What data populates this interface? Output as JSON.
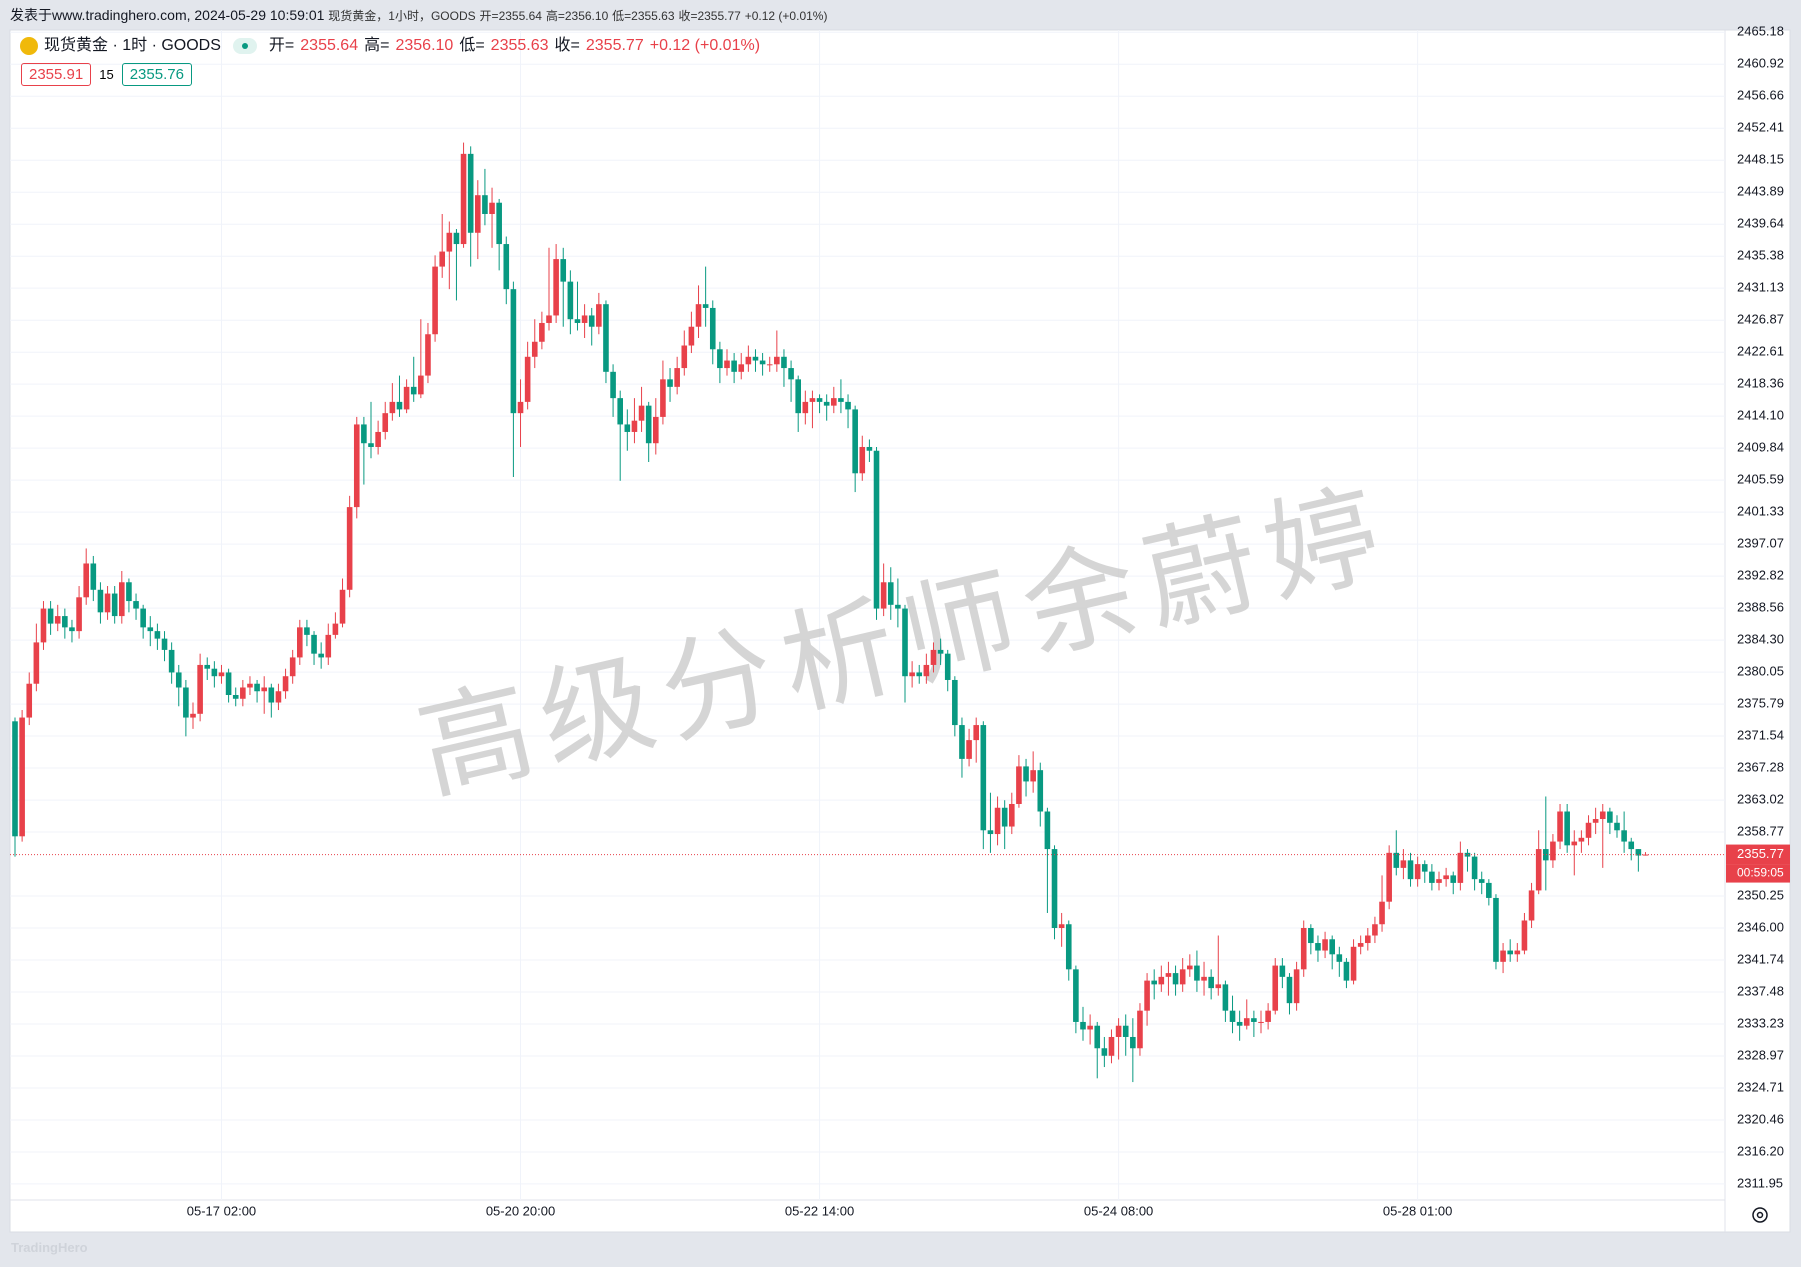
{
  "header": {
    "published": "发表于www.tradinghero.com, 2024-05-29 10:59:01",
    "symbol": "现货黄金，1小时，GOODS"
  },
  "legend": {
    "title": "现货黄金 · 1时 · GOODS",
    "items": [
      {
        "label": "开=",
        "value": "2355.64"
      },
      {
        "label": "高=",
        "value": "2356.10"
      },
      {
        "label": "低=",
        "value": "2355.63"
      },
      {
        "label": "收=",
        "value": "2355.77"
      }
    ],
    "change": "+0.12 (+0.01%)"
  },
  "quotes": {
    "bid": "2355.91",
    "spread": "15",
    "ask": "2355.76"
  },
  "watermark": "高级分析师余蔚婷",
  "footer": "TradingHero",
  "chart_data": {
    "type": "candlestick",
    "up_color": "#e8414a",
    "down_color": "#089981",
    "grid": true,
    "last_price": 2355.77,
    "countdown": "00:59:05",
    "ylim": [
      2309.81,
      2465.48
    ],
    "yticks": [
      2311.95,
      {
        "value": 2316.2,
        "label": "2316.20"
      },
      2320.46,
      2324.71,
      2328.97,
      2333.23,
      2337.48,
      2341.74,
      {
        "value": 2346,
        "label": "2346.00"
      },
      2350.25,
      2358.77,
      2363.02,
      2367.28,
      2371.54,
      2375.79,
      2380.05,
      {
        "value": 2384.3,
        "label": "2384.30"
      },
      2388.56,
      2392.82,
      2397.07,
      2401.33,
      2405.59,
      2409.84,
      {
        "value": 2414.1,
        "label": "2414.10"
      },
      2418.36,
      2422.61,
      2426.87,
      2431.13,
      2435.38,
      2439.64,
      2443.89,
      2448.15,
      2452.41,
      2456.66,
      2460.92,
      2465.18
    ],
    "categories": [
      null,
      null,
      null,
      null,
      null,
      null,
      null,
      null,
      null,
      null,
      null,
      null,
      null,
      null,
      null,
      null,
      null,
      null,
      null,
      null,
      null,
      null,
      null,
      null,
      null,
      null,
      null,
      null,
      null,
      "05-17 02:00",
      null,
      null,
      null,
      null,
      null,
      null,
      null,
      null,
      null,
      null,
      null,
      null,
      null,
      null,
      null,
      null,
      null,
      null,
      null,
      null,
      null,
      null,
      null,
      null,
      null,
      null,
      null,
      null,
      null,
      null,
      null,
      null,
      null,
      null,
      null,
      null,
      null,
      null,
      null,
      null,
      null,
      "05-20 20:00",
      null,
      null,
      null,
      null,
      null,
      null,
      null,
      null,
      null,
      null,
      null,
      null,
      null,
      null,
      null,
      null,
      null,
      null,
      null,
      null,
      null,
      null,
      null,
      null,
      null,
      null,
      null,
      null,
      null,
      null,
      null,
      null,
      null,
      null,
      null,
      null,
      null,
      null,
      null,
      null,
      null,
      "05-22 14:00",
      null,
      null,
      null,
      null,
      null,
      null,
      null,
      null,
      null,
      null,
      null,
      null,
      null,
      null,
      null,
      null,
      null,
      null,
      null,
      null,
      null,
      null,
      null,
      null,
      null,
      null,
      null,
      null,
      null,
      null,
      null,
      null,
      null,
      null,
      null,
      null,
      null,
      null,
      null,
      null,
      null,
      "05-24 08:00",
      null,
      null,
      null,
      null,
      null,
      null,
      null,
      null,
      null,
      null,
      null,
      null,
      null,
      null,
      null,
      null,
      null,
      null,
      null,
      null,
      null,
      null,
      null,
      null,
      null,
      null,
      null,
      null,
      null,
      null,
      null,
      null,
      null,
      null,
      null,
      null,
      null,
      null,
      null,
      null,
      null,
      "05-28 01:00",
      null,
      null,
      null,
      null,
      null,
      null,
      null,
      null,
      null,
      null,
      null,
      null,
      null,
      null,
      null,
      null,
      null,
      null,
      null,
      null,
      null,
      null,
      null,
      null,
      null,
      null,
      null,
      null,
      null,
      null,
      null,
      null
    ],
    "open": [
      2373.5,
      2358.2,
      2374.0,
      2378.5,
      2384.0,
      2388.5,
      2386.5,
      2387.5,
      2386.0,
      2385.5,
      2390.0,
      2394.5,
      2391.0,
      2388.0,
      2390.5,
      2387.5,
      2392.0,
      2389.5,
      2388.5,
      2386.0,
      2385.5,
      2384.5,
      2383.0,
      2380.0,
      2378.0,
      2374.0,
      2374.5,
      2381.0,
      2380.5,
      2379.5,
      2380.0,
      2377.0,
      2376.5,
      2378.0,
      2378.5,
      2377.5,
      2378.0,
      2376.0,
      2377.5,
      2379.5,
      2382.0,
      2386.0,
      2385.0,
      2382.5,
      2382.0,
      2385.0,
      2386.5,
      2391.0,
      2402.0,
      2413.0,
      2410.5,
      2410.0,
      2412.0,
      2414.5,
      2416.0,
      2415.0,
      2418.0,
      2417.0,
      2419.5,
      2425.0,
      2434.0,
      2436.0,
      2438.5,
      2437.0,
      2449.0,
      2438.5,
      2443.5,
      2441.0,
      2442.5,
      2437.0,
      2431.0,
      2414.5,
      2416.0,
      2422.0,
      2424.0,
      2426.5,
      2427.5,
      2435.0,
      2432.0,
      2427.0,
      2426.5,
      2427.5,
      2426.0,
      2429.0,
      2420.0,
      2416.5,
      2413.0,
      2412.0,
      2413.5,
      2415.5,
      2410.5,
      2414.0,
      2419.0,
      2418.0,
      2420.5,
      2423.5,
      2426.0,
      2429.0,
      2428.5,
      2423.0,
      2420.5,
      2421.5,
      2420.0,
      2421.0,
      2422.0,
      2421.5,
      2421.0,
      2421.0,
      2422.0,
      2420.5,
      2419.0,
      2414.5,
      2416.0,
      2416.5,
      2416.0,
      2415.5,
      2416.5,
      2416.0,
      2415.0,
      2406.5,
      2410.0,
      2409.5,
      2388.5,
      2392.0,
      2389.0,
      2388.5,
      2379.5,
      2380.0,
      2379.5,
      2381.0,
      2383.0,
      2382.5,
      2379.0,
      2373.0,
      2368.5,
      2371.0,
      2373.0,
      2359.0,
      2358.5,
      2362.0,
      2359.5,
      2362.5,
      2367.5,
      2365.5,
      2367.0,
      2361.5,
      2356.5,
      2346.0,
      2346.5,
      2340.5,
      2333.5,
      2332.5,
      2333.0,
      2330.0,
      2329.0,
      2331.5,
      2333.0,
      2331.5,
      2330.0,
      2335.0,
      2339.0,
      2338.5,
      2339.5,
      2340.0,
      2338.5,
      2340.5,
      2341.0,
      2339.0,
      2339.5,
      2338.0,
      2338.5,
      2335.0,
      2333.5,
      2333.0,
      2334.0,
      2333.5,
      2333.5,
      2335.0,
      2341.0,
      2339.5,
      2336.0,
      2340.5,
      2346.0,
      2344.0,
      2343.0,
      2344.5,
      2342.5,
      2341.5,
      2339.0,
      2343.5,
      2344.0,
      2345.0,
      2346.5,
      2349.5,
      2356.0,
      2354.0,
      2355.0,
      2352.5,
      2354.5,
      2353.5,
      2352.0,
      2352.5,
      2353.0,
      2352.0,
      2356.0,
      2355.5,
      2352.5,
      2352.0,
      2350.0,
      2341.5,
      2343.0,
      2342.5,
      2343.0,
      2347.0,
      2351.0,
      2356.5,
      2355.0,
      2357.5,
      2361.5,
      2357.0,
      2357.5,
      2358.0,
      2360.0,
      2360.5,
      2361.5,
      2360.0,
      2359.0,
      2357.5,
      2356.5,
      2355.64
    ],
    "high": [
      2374.0,
      2375.0,
      2380.0,
      2386.5,
      2389.5,
      2389.5,
      2389.0,
      2388.5,
      2387.0,
      2391.5,
      2396.5,
      2395.5,
      2392.0,
      2391.5,
      2391.5,
      2393.5,
      2392.5,
      2390.5,
      2389.0,
      2387.5,
      2386.5,
      2385.5,
      2384.0,
      2381.0,
      2379.0,
      2376.0,
      2382.5,
      2382.0,
      2381.5,
      2381.0,
      2380.5,
      2378.0,
      2379.0,
      2379.5,
      2379.0,
      2379.5,
      2378.5,
      2378.5,
      2380.5,
      2383.0,
      2387.0,
      2387.0,
      2385.5,
      2384.0,
      2386.5,
      2388.0,
      2392.5,
      2403.5,
      2414.0,
      2414.0,
      2416.0,
      2413.5,
      2416.0,
      2418.5,
      2419.5,
      2419.0,
      2422.0,
      2427.0,
      2426.5,
      2435.5,
      2441.0,
      2440.0,
      2439.0,
      2450.5,
      2450.0,
      2445.5,
      2447.0,
      2444.5,
      2443.0,
      2438.0,
      2432.0,
      2419.0,
      2424.0,
      2427.0,
      2428.0,
      2436.5,
      2437.0,
      2436.5,
      2433.5,
      2432.0,
      2429.0,
      2428.5,
      2430.5,
      2429.5,
      2421.0,
      2417.5,
      2415.0,
      2416.5,
      2418.0,
      2416.0,
      2416.5,
      2421.5,
      2420.5,
      2422.0,
      2425.5,
      2428.0,
      2431.5,
      2434.0,
      2429.5,
      2424.0,
      2423.0,
      2422.5,
      2422.5,
      2423.5,
      2423.0,
      2422.5,
      2422.0,
      2425.5,
      2423.0,
      2421.5,
      2419.5,
      2417.5,
      2417.5,
      2417.0,
      2417.0,
      2418.0,
      2419.0,
      2417.0,
      2415.5,
      2411.5,
      2411.0,
      2410.0,
      2394.5,
      2394.0,
      2392.5,
      2389.0,
      2381.5,
      2381.0,
      2382.5,
      2384.0,
      2384.5,
      2383.0,
      2379.5,
      2374.0,
      2372.5,
      2374.0,
      2373.5,
      2364.0,
      2363.5,
      2363.0,
      2364.0,
      2369.0,
      2368.5,
      2369.5,
      2368.0,
      2362.0,
      2357.0,
      2348.0,
      2347.0,
      2341.0,
      2335.5,
      2334.5,
      2333.5,
      2331.5,
      2332.5,
      2334.0,
      2334.5,
      2334.0,
      2336.0,
      2340.0,
      2340.5,
      2341.0,
      2341.5,
      2341.0,
      2342.0,
      2342.5,
      2343.0,
      2341.5,
      2340.5,
      2345.0,
      2339.0,
      2337.0,
      2335.0,
      2336.5,
      2335.0,
      2335.0,
      2336.0,
      2342.0,
      2342.0,
      2340.0,
      2341.5,
      2347.0,
      2346.5,
      2345.0,
      2345.5,
      2345.0,
      2343.5,
      2342.0,
      2344.5,
      2345.0,
      2346.0,
      2347.5,
      2353.0,
      2357.0,
      2359.0,
      2356.5,
      2356.0,
      2355.5,
      2355.0,
      2354.5,
      2353.5,
      2354.0,
      2353.5,
      2357.5,
      2356.5,
      2356.0,
      2353.5,
      2352.5,
      2350.5,
      2344.0,
      2344.5,
      2344.0,
      2348.0,
      2352.0,
      2359.0,
      2363.5,
      2358.5,
      2362.5,
      2362.5,
      2359.0,
      2359.0,
      2361.0,
      2362.0,
      2362.5,
      2362.0,
      2361.0,
      2361.5,
      2358.0,
      2356.5,
      2356.1
    ],
    "low": [
      2355.5,
      2357.5,
      2373.0,
      2377.5,
      2383.0,
      2385.0,
      2385.5,
      2384.5,
      2384.0,
      2384.5,
      2389.0,
      2389.5,
      2386.5,
      2387.0,
      2386.5,
      2386.5,
      2388.0,
      2387.0,
      2384.5,
      2383.5,
      2383.0,
      2381.5,
      2378.5,
      2375.5,
      2371.5,
      2372.5,
      2373.5,
      2379.0,
      2378.0,
      2378.5,
      2376.0,
      2375.5,
      2375.5,
      2377.0,
      2376.0,
      2374.5,
      2374.0,
      2375.0,
      2376.5,
      2378.5,
      2381.0,
      2383.5,
      2381.0,
      2380.5,
      2381.0,
      2384.5,
      2386.0,
      2390.0,
      2400.5,
      2405.0,
      2408.5,
      2409.0,
      2411.0,
      2413.5,
      2414.0,
      2414.5,
      2416.0,
      2416.5,
      2418.5,
      2424.0,
      2432.5,
      2431.0,
      2429.5,
      2436.5,
      2434.0,
      2435.0,
      2439.5,
      2436.5,
      2433.5,
      2429.0,
      2406.0,
      2410.0,
      2415.0,
      2420.5,
      2423.0,
      2425.5,
      2426.5,
      2426.0,
      2425.0,
      2425.5,
      2424.5,
      2423.5,
      2425.0,
      2418.5,
      2414.0,
      2405.5,
      2409.5,
      2410.5,
      2412.0,
      2408.0,
      2409.0,
      2413.0,
      2416.0,
      2417.0,
      2419.5,
      2422.5,
      2424.5,
      2426.0,
      2421.0,
      2418.5,
      2419.5,
      2418.5,
      2419.0,
      2420.0,
      2420.0,
      2419.5,
      2420.0,
      2420.0,
      2418.0,
      2416.0,
      2412.0,
      2413.0,
      2412.5,
      2414.5,
      2413.5,
      2414.5,
      2414.5,
      2412.5,
      2404.0,
      2405.5,
      2408.0,
      2387.0,
      2387.5,
      2387.0,
      2386.0,
      2376.0,
      2378.0,
      2378.5,
      2378.5,
      2380.0,
      2381.0,
      2377.5,
      2371.5,
      2366.0,
      2367.5,
      2368.0,
      2356.5,
      2356.0,
      2357.0,
      2356.5,
      2358.5,
      2362.0,
      2363.5,
      2364.0,
      2359.5,
      2348.0,
      2344.5,
      2343.5,
      2339.0,
      2332.0,
      2331.0,
      2330.5,
      2326.0,
      2327.5,
      2328.0,
      2328.5,
      2329.0,
      2325.5,
      2329.0,
      2333.0,
      2336.5,
      2337.5,
      2337.0,
      2337.0,
      2337.5,
      2339.5,
      2337.5,
      2337.0,
      2336.5,
      2337.0,
      2333.5,
      2332.0,
      2331.0,
      2332.5,
      2331.5,
      2332.0,
      2332.5,
      2334.5,
      2338.0,
      2334.5,
      2335.0,
      2339.5,
      2342.5,
      2341.5,
      2342.0,
      2340.5,
      2339.5,
      2338.0,
      2338.5,
      2342.5,
      2343.0,
      2344.0,
      2345.5,
      2348.5,
      2353.0,
      2352.5,
      2351.5,
      2351.5,
      2352.0,
      2351.0,
      2351.0,
      2351.5,
      2350.5,
      2351.0,
      2353.5,
      2351.0,
      2350.5,
      2349.0,
      2340.5,
      2340.0,
      2341.5,
      2341.5,
      2342.5,
      2346.0,
      2350.5,
      2351.0,
      2354.0,
      2356.5,
      2356.0,
      2353.0,
      2356.0,
      2357.0,
      2358.5,
      2354.0,
      2358.5,
      2358.0,
      2356.0,
      2355.0,
      2353.5,
      2355.63
    ],
    "close": [
      2358.2,
      2374.0,
      2378.5,
      2384.0,
      2388.5,
      2386.5,
      2387.5,
      2386.0,
      2385.5,
      2390.0,
      2394.5,
      2391.0,
      2388.0,
      2390.5,
      2387.5,
      2392.0,
      2389.5,
      2388.5,
      2386.0,
      2385.5,
      2384.5,
      2383.0,
      2380.0,
      2378.0,
      2374.0,
      2374.5,
      2381.0,
      2380.5,
      2379.5,
      2380.0,
      2377.0,
      2376.5,
      2378.0,
      2378.5,
      2377.5,
      2378.0,
      2376.0,
      2377.5,
      2379.5,
      2382.0,
      2386.0,
      2385.0,
      2382.5,
      2382.0,
      2385.0,
      2386.5,
      2391.0,
      2402.0,
      2413.0,
      2410.5,
      2410.0,
      2412.0,
      2414.5,
      2416.0,
      2415.0,
      2418.0,
      2417.0,
      2419.5,
      2425.0,
      2434.0,
      2436.0,
      2438.5,
      2437.0,
      2449.0,
      2438.5,
      2443.5,
      2441.0,
      2442.5,
      2437.0,
      2431.0,
      2414.5,
      2416.0,
      2422.0,
      2424.0,
      2426.5,
      2427.5,
      2435.0,
      2432.0,
      2427.0,
      2426.5,
      2427.5,
      2426.0,
      2429.0,
      2420.0,
      2416.5,
      2413.0,
      2412.0,
      2413.5,
      2415.5,
      2410.5,
      2414.0,
      2419.0,
      2418.0,
      2420.5,
      2423.5,
      2426.0,
      2429.0,
      2428.5,
      2423.0,
      2420.5,
      2421.5,
      2420.0,
      2421.0,
      2422.0,
      2421.5,
      2421.0,
      2421.0,
      2422.0,
      2420.5,
      2419.0,
      2414.5,
      2416.0,
      2416.5,
      2416.0,
      2415.5,
      2416.5,
      2416.0,
      2415.0,
      2406.5,
      2410.0,
      2409.5,
      2388.5,
      2392.0,
      2389.0,
      2388.5,
      2379.5,
      2380.0,
      2379.5,
      2381.0,
      2383.0,
      2382.5,
      2379.0,
      2373.0,
      2368.5,
      2371.0,
      2373.0,
      2359.0,
      2358.5,
      2362.0,
      2359.5,
      2362.5,
      2367.5,
      2365.5,
      2367.0,
      2361.5,
      2356.5,
      2346.0,
      2346.5,
      2340.5,
      2333.5,
      2332.5,
      2333.0,
      2330.0,
      2329.0,
      2331.5,
      2333.0,
      2331.5,
      2330.0,
      2335.0,
      2339.0,
      2338.5,
      2339.5,
      2340.0,
      2338.5,
      2340.5,
      2341.0,
      2339.0,
      2339.5,
      2338.0,
      2338.5,
      2335.0,
      2333.5,
      2333.0,
      2334.0,
      2333.5,
      2333.5,
      2335.0,
      2341.0,
      2339.5,
      2336.0,
      2340.5,
      2346.0,
      2344.0,
      2343.0,
      2344.5,
      2342.5,
      2341.5,
      2339.0,
      2343.5,
      2344.0,
      2345.0,
      2346.5,
      2349.5,
      2356.0,
      2354.0,
      2355.0,
      2352.5,
      2354.5,
      2353.5,
      2352.0,
      2352.5,
      2353.0,
      2352.0,
      2356.0,
      2355.5,
      2352.5,
      2352.0,
      2350.0,
      2341.5,
      2343.0,
      2342.5,
      2343.0,
      2347.0,
      2351.0,
      2356.5,
      2355.0,
      2357.5,
      2361.5,
      2357.0,
      2357.5,
      2358.0,
      2360.0,
      2360.5,
      2361.5,
      2360.0,
      2359.0,
      2357.5,
      2356.5,
      2355.64,
      2355.77
    ]
  }
}
